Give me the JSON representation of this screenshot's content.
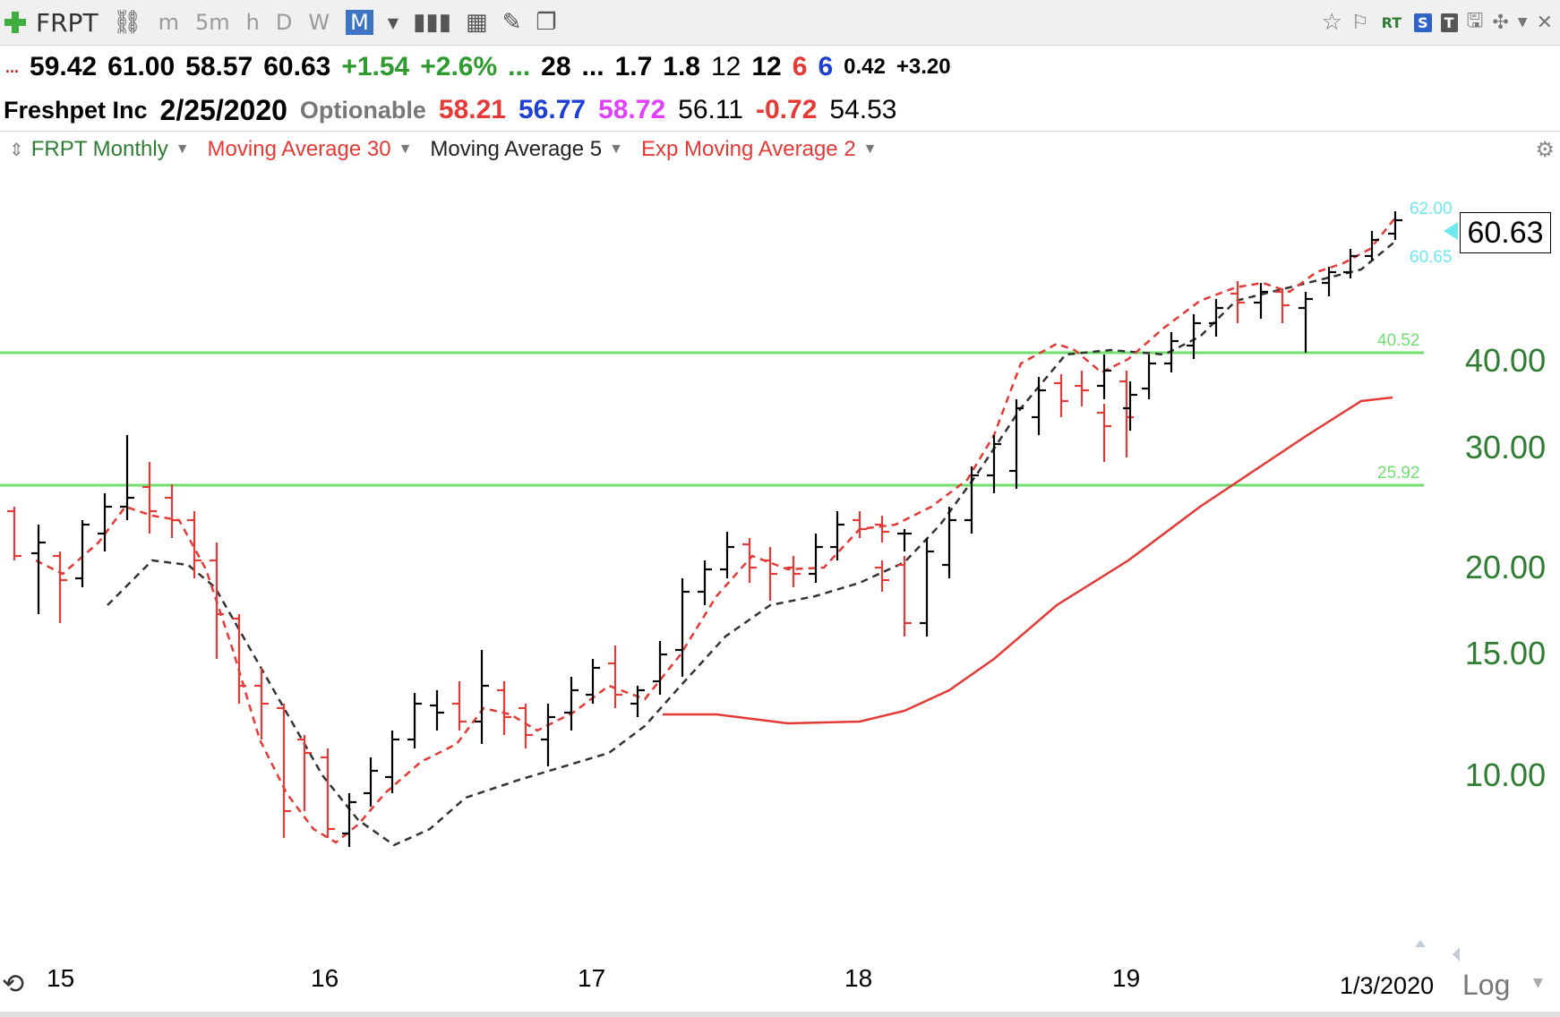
{
  "toolbar": {
    "symbol": "FRPT",
    "timeframes": [
      "m",
      "5m",
      "h",
      "D",
      "W",
      "M"
    ],
    "active_timeframe": "M",
    "right_buttons": [
      "RT",
      "S",
      "T"
    ]
  },
  "quote_line1": {
    "open": "59.42",
    "high": "61.00",
    "low": "58.57",
    "close": "60.63",
    "change": "+1.54",
    "change_pct": "+2.6%",
    "v1": "28",
    "v2": "1.7",
    "v3": "1.8",
    "v4": "12",
    "v5": "12",
    "v6": "6",
    "v7": "6",
    "v8": "0.42",
    "v9": "+3.20",
    "ellipsis": "..."
  },
  "quote_line2": {
    "name": "Freshpet Inc",
    "date": "2/25/2020",
    "optionable": "Optionable",
    "a": "58.21",
    "b": "56.77",
    "c": "58.72",
    "d": "56.11",
    "e": "-0.72",
    "f": "54.53"
  },
  "indicators": [
    {
      "label": "FRPT Monthly",
      "color": "#2e7d32"
    },
    {
      "label": "Moving Average 30",
      "color": "#e53935"
    },
    {
      "label": "Moving Average 5",
      "color": "#222222"
    },
    {
      "label": "Exp Moving Average 2",
      "color": "#e53935"
    }
  ],
  "price_axis": {
    "labels": [
      "40.00",
      "30.00",
      "20.00",
      "15.00",
      "10.00"
    ],
    "last_price": "60.63",
    "level_labels": [
      "62.00",
      "60.65",
      "40.52",
      "25.92"
    ],
    "scale": "Log"
  },
  "time_axis": {
    "labels": [
      "15",
      "16",
      "17",
      "18",
      "19"
    ],
    "last_date": "1/3/2020"
  },
  "chart_data": {
    "type": "ohlc",
    "scale": "log",
    "horizontal_lines": [
      40.52,
      25.92
    ],
    "legend": "top-left"
  }
}
